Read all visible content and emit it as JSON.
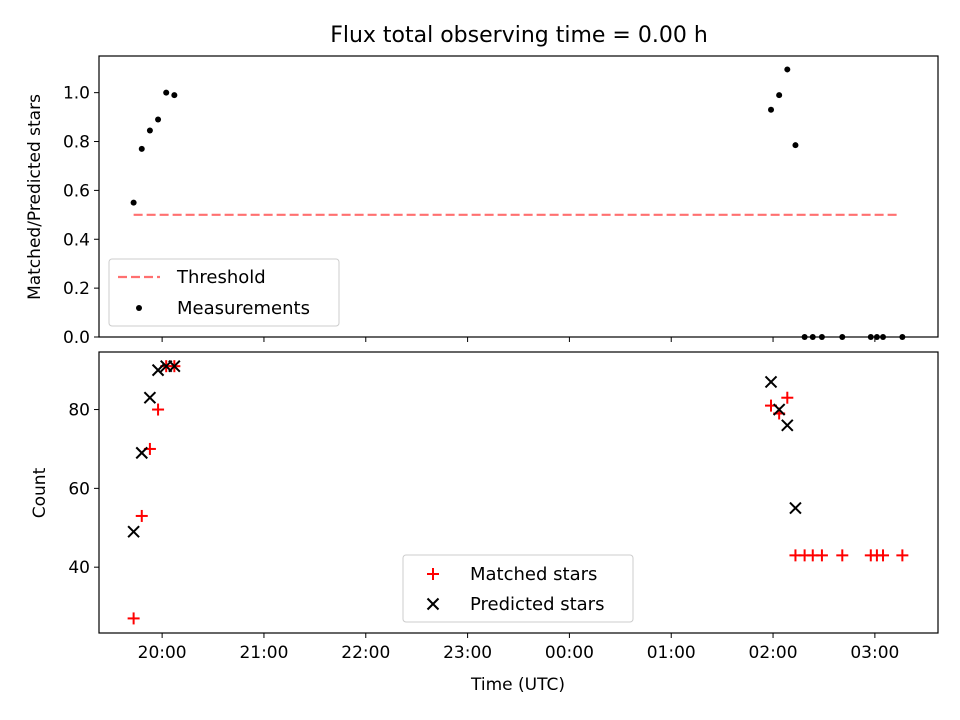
{
  "chart_data": [
    {
      "type": "scatter",
      "title": "Flux total observing time = 0.00 h",
      "xlabel": "",
      "ylabel": "Matched/Predicted stars",
      "x_unit": "UTC time (hours, values past 24 are the following day)",
      "xlim": [
        19.38,
        27.62
      ],
      "ylim": [
        0.0,
        1.15
      ],
      "yticks": [
        0.0,
        0.2,
        0.4,
        0.6,
        0.8,
        1.0
      ],
      "ytick_labels": [
        "0.0",
        "0.2",
        "0.4",
        "0.6",
        "0.8",
        "1.0"
      ],
      "legend": {
        "position": "lower-left",
        "entries": [
          "Threshold",
          "Measurements"
        ]
      },
      "series": [
        {
          "name": "Threshold",
          "kind": "line",
          "style": "dashed",
          "color": "#ff7070",
          "points": [
            [
              19.72,
              0.5
            ],
            [
              27.22,
              0.5
            ]
          ]
        },
        {
          "name": "Measurements",
          "kind": "scatter",
          "marker": "dot",
          "color": "#000000",
          "points": [
            [
              19.72,
              0.55
            ],
            [
              19.8,
              0.77
            ],
            [
              19.88,
              0.845
            ],
            [
              19.96,
              0.89
            ],
            [
              20.04,
              1.0
            ],
            [
              20.12,
              0.99
            ],
            [
              25.98,
              0.93
            ],
            [
              26.06,
              0.99
            ],
            [
              26.14,
              1.095
            ],
            [
              26.22,
              0.785
            ],
            [
              26.31,
              0.0
            ],
            [
              26.39,
              0.0
            ],
            [
              26.48,
              0.0
            ],
            [
              26.68,
              0.0
            ],
            [
              26.96,
              0.0
            ],
            [
              27.02,
              0.0
            ],
            [
              27.08,
              0.0
            ],
            [
              27.27,
              0.0
            ]
          ]
        }
      ]
    },
    {
      "type": "scatter",
      "xlabel": "Time (UTC)",
      "ylabel": "Count",
      "x_unit": "UTC time (hours, values past 24 are the following day)",
      "xlim": [
        19.38,
        27.62
      ],
      "ylim": [
        23.3,
        94.6
      ],
      "yticks": [
        40,
        60,
        80
      ],
      "ytick_labels": [
        "40",
        "60",
        "80"
      ],
      "xticks": [
        20,
        21,
        22,
        23,
        24,
        25,
        26,
        27
      ],
      "xtick_labels": [
        "20:00",
        "21:00",
        "22:00",
        "23:00",
        "00:00",
        "01:00",
        "02:00",
        "03:00"
      ],
      "legend": {
        "position": "lower-center",
        "entries": [
          "Matched stars",
          "Predicted stars"
        ]
      },
      "series": [
        {
          "name": "Matched stars",
          "marker": "plus",
          "color": "#ff0000",
          "points": [
            [
              19.72,
              27
            ],
            [
              19.8,
              53
            ],
            [
              19.88,
              70
            ],
            [
              19.96,
              80
            ],
            [
              20.04,
              91
            ],
            [
              20.12,
              91
            ],
            [
              25.98,
              81
            ],
            [
              26.06,
              79
            ],
            [
              26.14,
              83
            ],
            [
              26.22,
              43
            ],
            [
              26.31,
              43
            ],
            [
              26.39,
              43
            ],
            [
              26.48,
              43
            ],
            [
              26.68,
              43
            ],
            [
              26.96,
              43
            ],
            [
              27.02,
              43
            ],
            [
              27.08,
              43
            ],
            [
              27.27,
              43
            ]
          ]
        },
        {
          "name": "Predicted stars",
          "marker": "x",
          "color": "#000000",
          "points": [
            [
              19.72,
              49
            ],
            [
              19.8,
              69
            ],
            [
              19.88,
              83
            ],
            [
              19.96,
              90
            ],
            [
              20.04,
              91
            ],
            [
              20.12,
              91
            ],
            [
              25.98,
              87
            ],
            [
              26.06,
              80
            ],
            [
              26.14,
              76
            ],
            [
              26.22,
              55
            ]
          ]
        }
      ]
    }
  ]
}
